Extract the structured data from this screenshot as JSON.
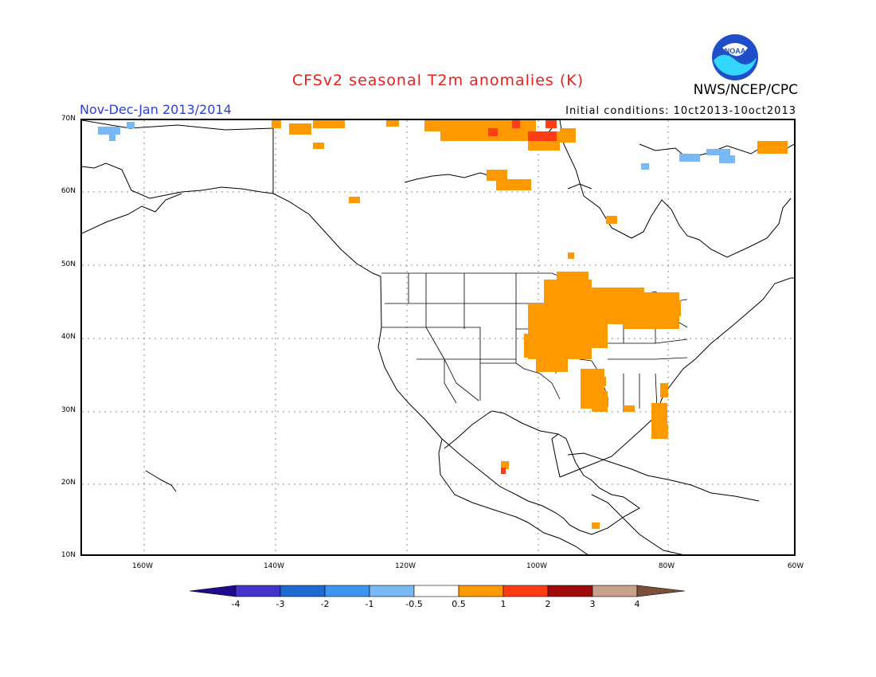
{
  "header": {
    "title": "CFSv2 seasonal T2m anomalies (K)",
    "org": "NWS/NCEP/CPC",
    "period": "Nov-Dec-Jan 2013/2014",
    "initial_conditions": "Initial conditions: 10ct2013-10oct2013",
    "logo_text": "NOAA"
  },
  "map": {
    "lat_labels": [
      "70N",
      "60N",
      "50N",
      "40N",
      "30N",
      "20N",
      "10N"
    ],
    "lon_labels": [
      "160W",
      "140W",
      "120W",
      "100W",
      "80W",
      "60W"
    ]
  },
  "colorbar": {
    "labels": [
      "-4",
      "-3",
      "-2",
      "-1",
      "-0.5",
      "0.5",
      "1",
      "2",
      "3",
      "4"
    ],
    "colors": [
      "#1e0a8c",
      "#4433c8",
      "#1e6ad2",
      "#3c96f0",
      "#78b9f5",
      "#ffffff",
      "#ff9900",
      "#ff3c14",
      "#a00a0a",
      "#c8a08c",
      "#7a5038"
    ]
  }
}
